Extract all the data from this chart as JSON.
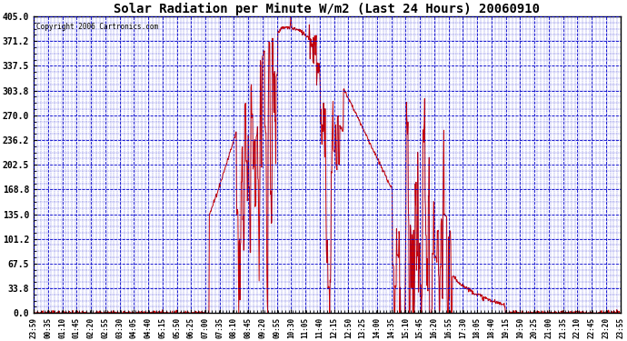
{
  "title": "Solar Radiation per Minute W/m2 (Last 24 Hours) 20060910",
  "copyright_text": "Copyright 2006 Cartronics.com",
  "bg_color": "#ffffff",
  "plot_bg_color": "#ffffff",
  "line_color": "#cc0000",
  "grid_color": "#0000cc",
  "title_color": "#000000",
  "tick_color": "#000000",
  "border_color": "#000000",
  "ylabel_values": [
    0.0,
    33.8,
    67.5,
    101.2,
    135.0,
    168.8,
    202.5,
    236.2,
    270.0,
    303.8,
    337.5,
    371.2,
    405.0
  ],
  "ylim": [
    0.0,
    405.0
  ],
  "x_labels": [
    "23:59",
    "00:35",
    "01:10",
    "01:45",
    "02:20",
    "02:55",
    "03:30",
    "04:05",
    "04:40",
    "05:15",
    "05:50",
    "06:25",
    "07:00",
    "07:35",
    "08:10",
    "08:45",
    "09:20",
    "09:55",
    "10:30",
    "11:05",
    "11:40",
    "12:15",
    "12:50",
    "13:25",
    "14:00",
    "14:35",
    "15:10",
    "15:45",
    "16:20",
    "16:55",
    "17:30",
    "18:05",
    "18:40",
    "19:15",
    "19:50",
    "20:25",
    "21:00",
    "21:35",
    "22:10",
    "22:45",
    "23:20",
    "23:55"
  ]
}
